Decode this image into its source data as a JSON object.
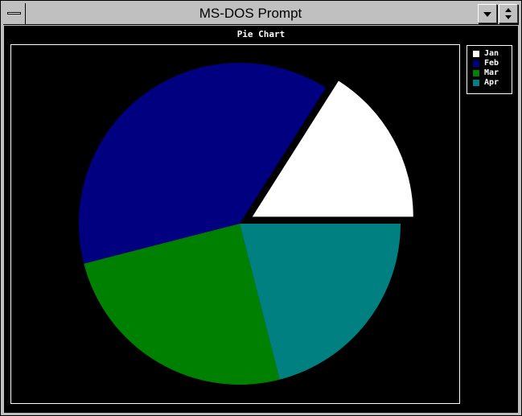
{
  "window": {
    "title": "MS-DOS Prompt"
  },
  "icons": {
    "system_menu": "system-menu-icon",
    "minimize": "minimize-arrow-icon",
    "restore": "restore-arrows-icon"
  },
  "chart_data": {
    "type": "pie",
    "title": "Pie Chart",
    "categories": [
      "Jan",
      "Feb",
      "Mar",
      "Apr"
    ],
    "values": [
      16,
      38,
      25,
      21
    ],
    "colors": [
      "#ffffff",
      "#000080",
      "#008000",
      "#008080"
    ],
    "exploded": [
      "Jan"
    ],
    "legend": "right",
    "background": "#000000"
  }
}
